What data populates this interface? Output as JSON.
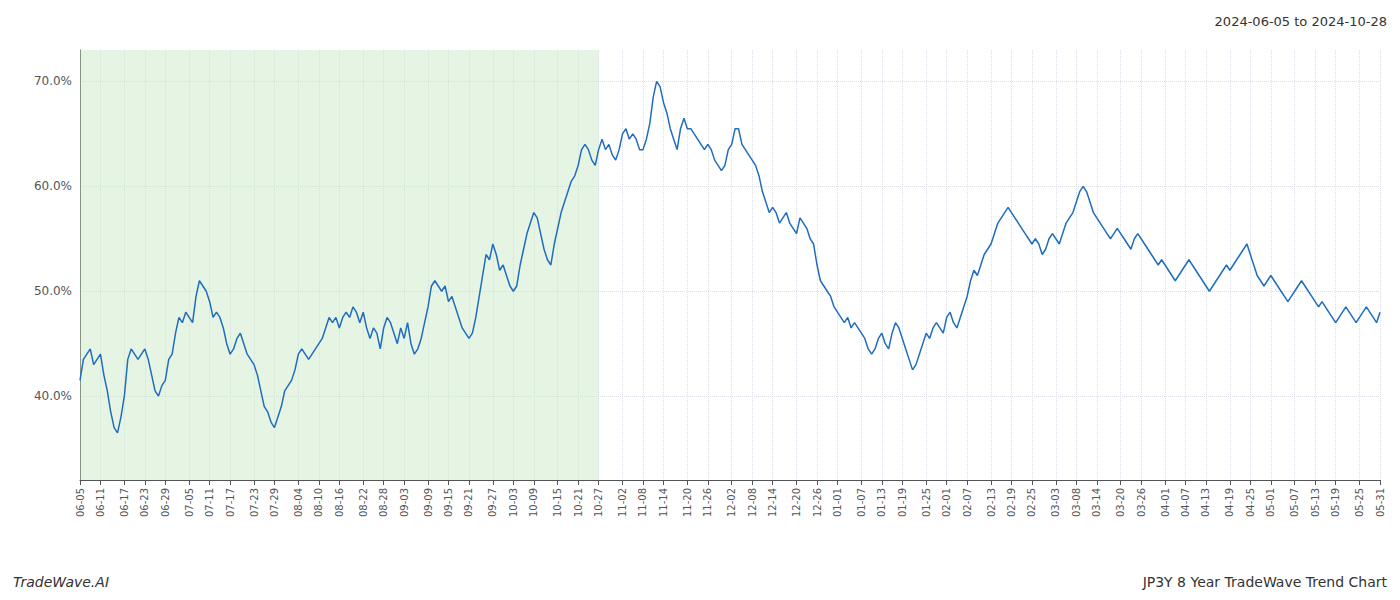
{
  "chart_data": {
    "type": "line",
    "title": "JP3Y 8 Year TradeWave Trend Chart",
    "subtitle": "2024-06-05 to 2024-10-28",
    "annotations": [
      "TradeWave.AI"
    ],
    "color": "#1f6dbf",
    "grid": true,
    "ylim": [
      32,
      73
    ],
    "yticks": [
      {
        "value": 40.0,
        "label": "40.0%"
      },
      {
        "value": 50.0,
        "label": "50.0%"
      },
      {
        "value": 60.0,
        "label": "60.0%"
      },
      {
        "value": 70.0,
        "label": "70.0%"
      }
    ],
    "shade": {
      "from": "06-05",
      "to": "10-27",
      "color": "#c8e6c0"
    },
    "categories": [
      "06-05",
      null,
      null,
      null,
      null,
      null,
      "06-11",
      null,
      null,
      null,
      null,
      null,
      null,
      "06-17",
      null,
      null,
      null,
      null,
      null,
      "06-23",
      null,
      null,
      null,
      null,
      null,
      "06-29",
      null,
      null,
      null,
      null,
      null,
      null,
      "07-05",
      null,
      null,
      null,
      null,
      null,
      "07-11",
      null,
      null,
      null,
      null,
      null,
      "07-17",
      null,
      null,
      null,
      null,
      null,
      null,
      "07-23",
      null,
      null,
      null,
      null,
      null,
      "07-29",
      null,
      null,
      null,
      null,
      null,
      null,
      "08-04",
      null,
      null,
      null,
      null,
      null,
      "08-10",
      null,
      null,
      null,
      null,
      null,
      "08-16",
      null,
      null,
      null,
      null,
      null,
      null,
      "08-22",
      null,
      null,
      null,
      null,
      null,
      "08-28",
      null,
      null,
      null,
      null,
      null,
      "09-03",
      null,
      null,
      null,
      null,
      null,
      null,
      "09-09",
      null,
      null,
      null,
      null,
      null,
      "09-15",
      null,
      null,
      null,
      null,
      null,
      "09-21",
      null,
      null,
      null,
      null,
      null,
      null,
      "09-27",
      null,
      null,
      null,
      null,
      null,
      "10-03",
      null,
      null,
      null,
      null,
      null,
      "10-09",
      null,
      null,
      null,
      null,
      null,
      null,
      "10-15",
      null,
      null,
      null,
      null,
      null,
      "10-21",
      null,
      null,
      null,
      null,
      null,
      "10-27",
      null,
      null,
      null,
      null,
      null,
      null,
      "11-02",
      null,
      null,
      null,
      null,
      null,
      "11-08",
      null,
      null,
      null,
      null,
      null,
      "11-14",
      null,
      null,
      null,
      null,
      null,
      null,
      "11-20",
      null,
      null,
      null,
      null,
      null,
      "11-26",
      null,
      null,
      null,
      null,
      null,
      null,
      "12-02",
      null,
      null,
      null,
      null,
      null,
      "12-08",
      null,
      null,
      null,
      null,
      null,
      "12-14",
      null,
      null,
      null,
      null,
      null,
      null,
      "12-20",
      null,
      null,
      null,
      null,
      null,
      "12-26",
      null,
      null,
      null,
      null,
      null,
      "01-01",
      null,
      null,
      null,
      null,
      null,
      null,
      "01-07",
      null,
      null,
      null,
      null,
      null,
      "01-13",
      null,
      null,
      null,
      null,
      null,
      "01-19",
      null,
      null,
      null,
      null,
      null,
      null,
      "01-25",
      null,
      null,
      null,
      null,
      null,
      "02-01",
      null,
      null,
      null,
      null,
      null,
      "02-07",
      null,
      null,
      null,
      null,
      null,
      null,
      "02-13",
      null,
      null,
      null,
      null,
      null,
      "02-19",
      null,
      null,
      null,
      null,
      null,
      "02-25",
      null,
      null,
      null,
      null,
      null,
      null,
      "03-03",
      null,
      null,
      null,
      null,
      null,
      "03-08",
      null,
      null,
      null,
      null,
      null,
      "03-14",
      null,
      null,
      null,
      null,
      null,
      null,
      "03-20",
      null,
      null,
      null,
      null,
      null,
      "03-26",
      null,
      null,
      null,
      null,
      null,
      null,
      "04-01",
      null,
      null,
      null,
      null,
      null,
      "04-07",
      null,
      null,
      null,
      null,
      null,
      "04-13",
      null,
      null,
      null,
      null,
      null,
      null,
      "04-19",
      null,
      null,
      null,
      null,
      null,
      "04-25",
      null,
      null,
      null,
      null,
      null,
      "05-01",
      null,
      null,
      null,
      null,
      null,
      null,
      "05-07",
      null,
      null,
      null,
      null,
      null,
      "05-13",
      null,
      null,
      null,
      null,
      null,
      "05-19",
      null,
      null,
      null,
      null,
      null,
      null,
      "05-25",
      null,
      null,
      null,
      null,
      null,
      "05-31"
    ],
    "values": [
      41.5,
      43.5,
      44.0,
      44.5,
      43.0,
      43.5,
      44.0,
      42.0,
      40.5,
      38.5,
      37.0,
      36.5,
      38.0,
      40.0,
      43.5,
      44.5,
      44.0,
      43.5,
      44.0,
      44.5,
      43.5,
      42.0,
      40.5,
      40.0,
      41.0,
      41.5,
      43.5,
      44.0,
      46.0,
      47.5,
      47.0,
      48.0,
      47.5,
      47.0,
      49.5,
      51.0,
      50.5,
      50.0,
      49.0,
      47.5,
      48.0,
      47.5,
      46.5,
      45.0,
      44.0,
      44.5,
      45.5,
      46.0,
      45.0,
      44.0,
      43.5,
      43.0,
      42.0,
      40.5,
      39.0,
      38.5,
      37.5,
      37.0,
      38.0,
      39.0,
      40.5,
      41.0,
      41.5,
      42.5,
      44.0,
      44.5,
      44.0,
      43.5,
      44.0,
      44.5,
      45.0,
      45.5,
      46.5,
      47.5,
      47.0,
      47.5,
      46.5,
      47.5,
      48.0,
      47.5,
      48.5,
      48.0,
      47.0,
      48.0,
      46.5,
      45.5,
      46.5,
      46.0,
      44.5,
      46.5,
      47.5,
      47.0,
      46.0,
      45.0,
      46.5,
      45.5,
      47.0,
      45.0,
      44.0,
      44.5,
      45.5,
      47.0,
      48.5,
      50.5,
      51.0,
      50.5,
      50.0,
      50.5,
      49.0,
      49.5,
      48.5,
      47.5,
      46.5,
      46.0,
      45.5,
      46.0,
      47.5,
      49.5,
      51.5,
      53.5,
      53.0,
      54.5,
      53.5,
      52.0,
      52.5,
      51.5,
      50.5,
      50.0,
      50.5,
      52.5,
      54.0,
      55.5,
      56.5,
      57.5,
      57.0,
      55.5,
      54.0,
      53.0,
      52.5,
      54.5,
      56.0,
      57.5,
      58.5,
      59.5,
      60.5,
      61.0,
      62.0,
      63.5,
      64.0,
      63.5,
      62.5,
      62.0,
      63.5,
      64.5,
      63.5,
      64.0,
      63.0,
      62.5,
      63.5,
      65.0,
      65.5,
      64.5,
      65.0,
      64.5,
      63.5,
      63.5,
      64.5,
      66.0,
      68.5,
      70.0,
      69.5,
      68.0,
      67.0,
      65.5,
      64.5,
      63.5,
      65.5,
      66.5,
      65.5,
      65.5,
      65.0,
      64.5,
      64.0,
      63.5,
      64.0,
      63.5,
      62.5,
      62.0,
      61.5,
      62.0,
      63.5,
      64.0,
      65.5,
      65.5,
      64.0,
      63.5,
      63.0,
      62.5,
      62.0,
      61.0,
      59.5,
      58.5,
      57.5,
      58.0,
      57.5,
      56.5,
      57.0,
      57.5,
      56.5,
      56.0,
      55.5,
      57.0,
      56.5,
      56.0,
      55.0,
      54.5,
      52.5,
      51.0,
      50.5,
      50.0,
      49.5,
      48.5,
      48.0,
      47.5,
      47.0,
      47.5,
      46.5,
      47.0,
      46.5,
      46.0,
      45.5,
      44.5,
      44.0,
      44.5,
      45.5,
      46.0,
      45.0,
      44.5,
      46.0,
      47.0,
      46.5,
      45.5,
      44.5,
      43.5,
      42.5,
      43.0,
      44.0,
      45.0,
      46.0,
      45.5,
      46.5,
      47.0,
      46.5,
      46.0,
      47.5,
      48.0,
      47.0,
      46.5,
      47.5,
      48.5,
      49.5,
      51.0,
      52.0,
      51.5,
      52.5,
      53.5,
      54.0,
      54.5,
      55.5,
      56.5,
      57.0,
      57.5,
      58.0,
      57.5,
      57.0,
      56.5,
      56.0,
      55.5,
      55.0,
      54.5,
      55.0,
      54.5,
      53.5,
      54.0,
      55.0,
      55.5,
      55.0,
      54.5,
      55.5,
      56.5,
      57.0,
      57.5,
      58.5,
      59.5,
      60.0,
      59.5,
      58.5,
      57.5,
      57.0,
      56.5,
      56.0,
      55.5,
      55.0,
      55.5,
      56.0,
      55.5,
      55.0,
      54.5,
      54.0,
      55.0,
      55.5,
      55.0,
      54.5,
      54.0,
      53.5,
      53.0,
      52.5,
      53.0,
      52.5,
      52.0,
      51.5,
      51.0,
      51.5,
      52.0,
      52.5,
      53.0,
      52.5,
      52.0,
      51.5,
      51.0,
      50.5,
      50.0,
      50.5,
      51.0,
      51.5,
      52.0,
      52.5,
      52.0,
      52.5,
      53.0,
      53.5,
      54.0,
      54.5,
      53.5,
      52.5,
      51.5,
      51.0,
      50.5,
      51.0,
      51.5,
      51.0,
      50.5,
      50.0,
      49.5,
      49.0,
      49.5,
      50.0,
      50.5,
      51.0,
      50.5,
      50.0,
      49.5,
      49.0,
      48.5,
      49.0,
      48.5,
      48.0,
      47.5,
      47.0,
      47.5,
      48.0,
      48.5,
      48.0,
      47.5,
      47.0,
      47.5,
      48.0,
      48.5,
      48.0,
      47.5,
      47.0,
      48.0
    ]
  }
}
